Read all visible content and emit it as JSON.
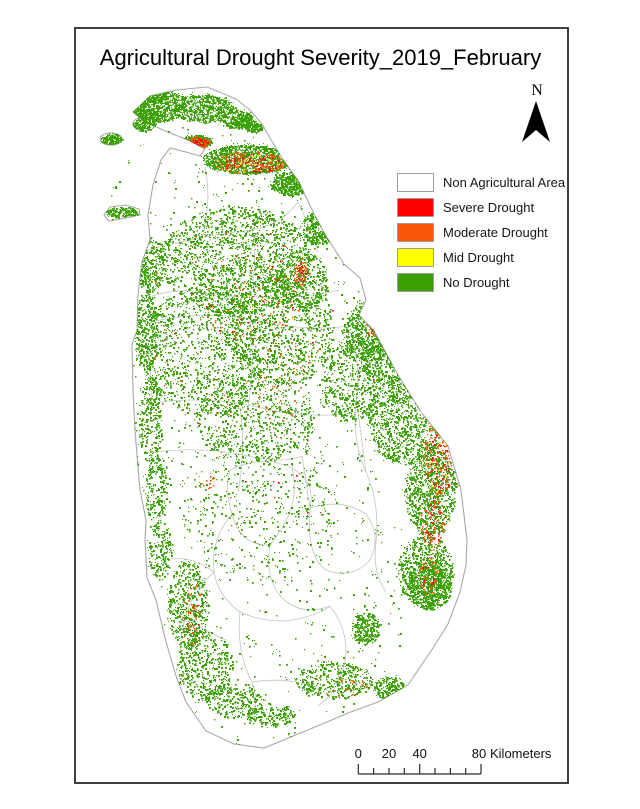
{
  "title": "Agricultural Drought Severity_2019_February",
  "north_arrow": {
    "label": "N"
  },
  "legend": {
    "items": [
      {
        "id": "non-agricultural",
        "label": "Non Agricultural Area",
        "color": "#FFFFFF"
      },
      {
        "id": "severe-drought",
        "label": "Severe Drought",
        "color": "#FF0000"
      },
      {
        "id": "moderate-drought",
        "label": "Moderate Drought",
        "color": "#F95506"
      },
      {
        "id": "mid-drought",
        "label": "Mid Drought",
        "color": "#FFFF00"
      },
      {
        "id": "no-drought",
        "label": "No Drought",
        "color": "#3AA004"
      }
    ]
  },
  "scale_bar": {
    "tick_labels": [
      "0",
      "20",
      "40",
      "80"
    ],
    "unit_label": "Kilometers"
  },
  "map": {
    "coast_color": "#a8a8a8",
    "district_boundary_color": "#c6c6c6",
    "sea_color": "#ffffff"
  }
}
